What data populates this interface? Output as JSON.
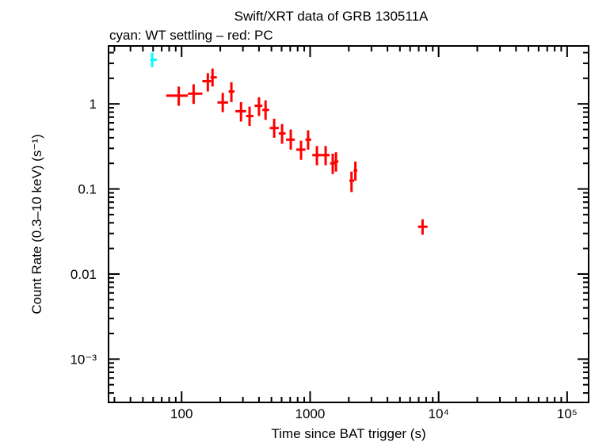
{
  "chart_data": {
    "type": "scatter",
    "title": "Swift/XRT data of GRB 130511A",
    "subtitle": "cyan: WT settling – red: PC",
    "xlabel": "Time since BAT trigger (s)",
    "ylabel": "Count Rate (0.3–10 keV) (s⁻¹)",
    "xscale": "log",
    "yscale": "log",
    "xlim": [
      27,
      147000
    ],
    "ylim": [
      0.00031,
      4.8
    ],
    "xticks": [
      {
        "v": 100,
        "label": "100"
      },
      {
        "v": 1000,
        "label": "1000"
      },
      {
        "v": 10000,
        "label": "10⁴"
      },
      {
        "v": 100000,
        "label": "10⁵"
      }
    ],
    "yticks": [
      {
        "v": 1,
        "label": "1"
      },
      {
        "v": 0.1,
        "label": "0.1"
      },
      {
        "v": 0.01,
        "label": "0.01"
      },
      {
        "v": 0.001,
        "label": "10⁻³"
      }
    ],
    "grid": false,
    "series": [
      {
        "color": "#00ffff",
        "points": [
          {
            "x": 59,
            "y": 3.3,
            "xlo": 57,
            "xhi": 64,
            "ylo": 2.7,
            "yhi": 4.0
          }
        ]
      },
      {
        "color": "#ff0000",
        "points": [
          {
            "x": 95,
            "y": 1.25,
            "xlo": 76,
            "xhi": 112,
            "ylo": 0.95,
            "yhi": 1.6
          },
          {
            "x": 124,
            "y": 1.32,
            "xlo": 112,
            "xhi": 145,
            "ylo": 1.0,
            "yhi": 1.7
          },
          {
            "x": 160,
            "y": 1.85,
            "xlo": 145,
            "xhi": 170,
            "ylo": 1.4,
            "yhi": 2.3
          },
          {
            "x": 174,
            "y": 2.05,
            "xlo": 168,
            "xhi": 188,
            "ylo": 1.6,
            "yhi": 2.6
          },
          {
            "x": 209,
            "y": 1.04,
            "xlo": 190,
            "xhi": 230,
            "ylo": 0.8,
            "yhi": 1.35
          },
          {
            "x": 244,
            "y": 1.4,
            "xlo": 232,
            "xhi": 258,
            "ylo": 1.05,
            "yhi": 1.8
          },
          {
            "x": 290,
            "y": 0.82,
            "xlo": 262,
            "xhi": 318,
            "ylo": 0.62,
            "yhi": 1.05
          },
          {
            "x": 338,
            "y": 0.72,
            "xlo": 318,
            "xhi": 362,
            "ylo": 0.55,
            "yhi": 0.93
          },
          {
            "x": 400,
            "y": 0.95,
            "xlo": 370,
            "xhi": 425,
            "ylo": 0.72,
            "yhi": 1.2
          },
          {
            "x": 450,
            "y": 0.85,
            "xlo": 425,
            "xhi": 480,
            "ylo": 0.65,
            "yhi": 1.1
          },
          {
            "x": 525,
            "y": 0.52,
            "xlo": 485,
            "xhi": 570,
            "ylo": 0.4,
            "yhi": 0.67
          },
          {
            "x": 605,
            "y": 0.45,
            "xlo": 570,
            "xhi": 645,
            "ylo": 0.34,
            "yhi": 0.58
          },
          {
            "x": 707,
            "y": 0.38,
            "xlo": 650,
            "xhi": 760,
            "ylo": 0.29,
            "yhi": 0.5
          },
          {
            "x": 850,
            "y": 0.29,
            "xlo": 780,
            "xhi": 920,
            "ylo": 0.22,
            "yhi": 0.37
          },
          {
            "x": 965,
            "y": 0.38,
            "xlo": 920,
            "xhi": 1020,
            "ylo": 0.29,
            "yhi": 0.49
          },
          {
            "x": 1130,
            "y": 0.25,
            "xlo": 1040,
            "xhi": 1230,
            "ylo": 0.19,
            "yhi": 0.32
          },
          {
            "x": 1320,
            "y": 0.25,
            "xlo": 1230,
            "xhi": 1420,
            "ylo": 0.19,
            "yhi": 0.32
          },
          {
            "x": 1500,
            "y": 0.2,
            "xlo": 1430,
            "xhi": 1560,
            "ylo": 0.15,
            "yhi": 0.26
          },
          {
            "x": 1590,
            "y": 0.21,
            "xlo": 1540,
            "xhi": 1660,
            "ylo": 0.16,
            "yhi": 0.27
          },
          {
            "x": 2100,
            "y": 0.125,
            "xlo": 2020,
            "xhi": 2200,
            "ylo": 0.092,
            "yhi": 0.16
          },
          {
            "x": 2250,
            "y": 0.165,
            "xlo": 2180,
            "xhi": 2330,
            "ylo": 0.125,
            "yhi": 0.21
          },
          {
            "x": 7500,
            "y": 0.036,
            "xlo": 6900,
            "xhi": 8200,
            "ylo": 0.029,
            "yhi": 0.044
          }
        ]
      }
    ]
  }
}
